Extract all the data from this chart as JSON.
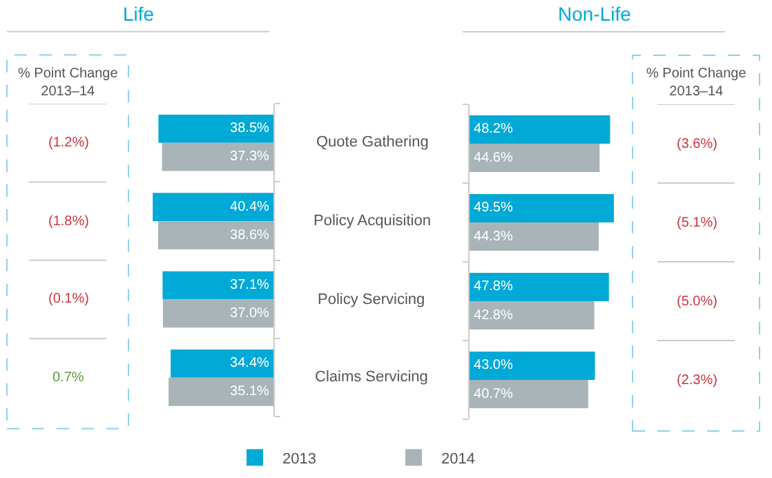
{
  "chart_data": [
    {
      "type": "bar",
      "orientation": "horizontal",
      "title": "Life",
      "categories": [
        "Quote Gathering",
        "Policy Acquisition",
        "Policy Servicing",
        "Claims Servicing"
      ],
      "tick_labels": "y",
      "legend": "bottom",
      "series": [
        {
          "name": "2013",
          "color": "#00a9d6",
          "values": [
            38.5,
            40.4,
            37.1,
            34.4
          ],
          "value_labels": [
            "38.5%",
            "40.4%",
            "37.1%",
            "34.4%"
          ]
        },
        {
          "name": "2014",
          "color": "#a8b4b7",
          "values": [
            37.3,
            38.6,
            37.0,
            35.1
          ],
          "value_labels": [
            "37.3%",
            "38.6%",
            "37.0%",
            "35.1%"
          ]
        }
      ],
      "annotations": [
        "% Point Change\n2013–14",
        "(1.2%)",
        "(1.8%)",
        "(0.1%)",
        "0.7%"
      ]
    },
    {
      "type": "bar",
      "orientation": "horizontal",
      "title": "Non-Life",
      "categories": [
        null,
        null,
        null,
        null
      ],
      "tick_labels": false,
      "series": [
        {
          "name": "2013",
          "color": "#00a9d6",
          "values": [
            48.2,
            49.5,
            47.8,
            43.0
          ],
          "value_labels": [
            "48.2%",
            "49.5%",
            "47.8%",
            "43.0%"
          ]
        },
        {
          "name": "2014",
          "color": "#a8b4b7",
          "values": [
            44.6,
            44.3,
            42.8,
            40.7
          ],
          "value_labels": [
            "44.6%",
            "44.3%",
            "42.8%",
            "40.7%"
          ]
        }
      ],
      "annotations": [
        "% Point Change\n2013–14",
        "(3.6%)",
        "(5.1%)",
        "(5.0%)",
        "(2.3%)"
      ]
    }
  ]
}
